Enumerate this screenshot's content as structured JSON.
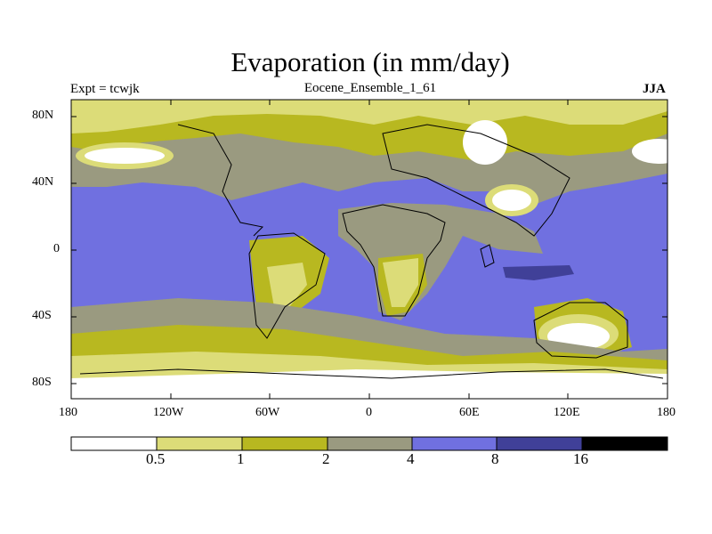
{
  "title": "Evaporation (in mm/day)",
  "left_label": "Expt = tcwjk",
  "center_label": "Eocene_Ensemble_1_61",
  "right_label": "JJA",
  "map": {
    "y_ticks": [
      "80N",
      "40N",
      "0",
      "40S",
      "80S"
    ],
    "x_ticks": [
      "180",
      "120W",
      "60W",
      "0",
      "60E",
      "120E",
      "180"
    ],
    "lon_range": [
      -180,
      180
    ],
    "lat_range": [
      -90,
      90
    ]
  },
  "colorbar": {
    "labels": [
      "0.5",
      "1",
      "2",
      "4",
      "8",
      "16"
    ],
    "colors": [
      "#ffffff",
      "#dcdc78",
      "#b8b820",
      "#9a9a80",
      "#7070e0",
      "#404098",
      "#000000"
    ]
  }
}
